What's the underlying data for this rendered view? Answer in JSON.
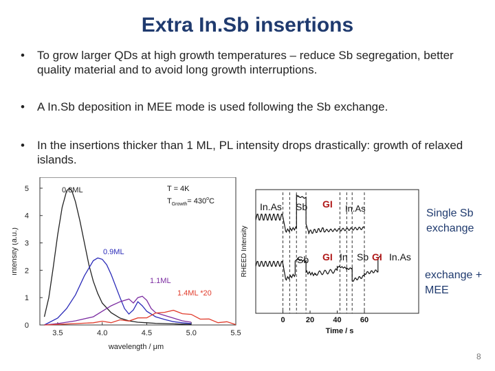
{
  "slide": {
    "title": "Extra In.Sb insertions",
    "page_number": "8",
    "bullets": [
      {
        "symbol": "•",
        "text": "To grow larger QDs at high growth temperatures – reduce Sb segregation, better quality material and to avoid long growth interruptions."
      },
      {
        "symbol": "•",
        "text": "A In.Sb deposition in MEE mode is used following the Sb exchange."
      },
      {
        "symbol": "•",
        "text": "In the insertions thicker than 1 ML, PL intensity drops drastically: growth of relaxed islands."
      }
    ],
    "side_labels": {
      "single": [
        "Single Sb",
        "exchange"
      ],
      "mee": [
        "exchange +",
        "MEE"
      ]
    }
  },
  "chart_data": [
    {
      "type": "line",
      "title": "",
      "xlabel": "wavelength / μm",
      "ylabel": "Intensity (a.u.)",
      "xlim": [
        3.3,
        5.5
      ],
      "ylim": [
        0,
        5.4
      ],
      "xticks": [
        "3.5",
        "4.0",
        "4.5",
        "5.0",
        "5.5"
      ],
      "yticks": [
        "0",
        "1",
        "2",
        "3",
        "4",
        "5"
      ],
      "annotation_lines": [
        "T = 4K",
        "T",
        "Growth",
        "= 430",
        "o",
        "C"
      ],
      "series": [
        {
          "name": "0.8ML",
          "color": "#222222",
          "x": [
            3.35,
            3.4,
            3.45,
            3.5,
            3.55,
            3.6,
            3.63,
            3.66,
            3.7,
            3.75,
            3.8,
            3.85,
            3.9,
            3.95,
            4.0,
            4.1,
            4.2,
            4.3,
            4.4,
            4.5,
            4.6,
            4.7,
            4.8,
            4.9,
            5.0
          ],
          "y": [
            0.3,
            1.0,
            2.1,
            3.3,
            4.3,
            4.9,
            5.0,
            4.9,
            4.5,
            3.8,
            3.0,
            2.2,
            1.6,
            1.15,
            0.8,
            0.45,
            0.25,
            0.15,
            0.1,
            0.08,
            0.06,
            0.05,
            0.04,
            0.03,
            0.02
          ]
        },
        {
          "name": "0.9ML",
          "color": "#2a2ab8",
          "x": [
            3.35,
            3.5,
            3.6,
            3.7,
            3.8,
            3.9,
            3.95,
            4.0,
            4.05,
            4.1,
            4.2,
            4.25,
            4.3,
            4.35,
            4.4,
            4.45,
            4.5,
            4.6,
            4.7,
            4.8,
            4.9,
            5.0
          ],
          "y": [
            0.0,
            0.25,
            0.6,
            1.1,
            1.8,
            2.35,
            2.45,
            2.4,
            2.2,
            1.85,
            1.0,
            0.6,
            0.4,
            0.55,
            0.85,
            0.7,
            0.5,
            0.3,
            0.2,
            0.12,
            0.08,
            0.05
          ]
        },
        {
          "name": "1.1ML",
          "color": "#7a2aa0",
          "x": [
            3.35,
            3.5,
            3.7,
            3.9,
            4.0,
            4.1,
            4.2,
            4.3,
            4.35,
            4.4,
            4.45,
            4.5,
            4.55,
            4.6,
            4.7,
            4.8,
            4.9,
            5.0
          ],
          "y": [
            0.0,
            0.05,
            0.15,
            0.3,
            0.5,
            0.7,
            0.85,
            0.95,
            0.8,
            1.0,
            1.05,
            0.9,
            0.6,
            0.45,
            0.35,
            0.25,
            0.15,
            0.1
          ]
        },
        {
          "name": "1.4ML *20",
          "color": "#e03a2a",
          "x": [
            3.35,
            3.5,
            3.7,
            3.9,
            4.0,
            4.1,
            4.2,
            4.3,
            4.4,
            4.5,
            4.6,
            4.7,
            4.8,
            4.9,
            5.0,
            5.1,
            5.2,
            5.3,
            5.4,
            5.5
          ],
          "y": [
            0.0,
            0.02,
            0.05,
            0.08,
            0.1,
            0.12,
            0.15,
            0.18,
            0.22,
            0.3,
            0.4,
            0.5,
            0.5,
            0.45,
            0.35,
            0.25,
            0.18,
            0.12,
            0.08,
            0.05
          ]
        }
      ]
    },
    {
      "type": "line",
      "title": "",
      "xlabel": "Time / s",
      "ylabel": "RHEED Intensity",
      "xlim": [
        -20,
        100
      ],
      "xticks": [
        "0",
        "20",
        "40",
        "60"
      ],
      "upper_labels": [
        "In.As",
        "Sb",
        "GI",
        "In.As"
      ],
      "lower_labels": [
        "Sb",
        "GI",
        "In",
        "Sb",
        "GI",
        "In.As"
      ],
      "series": [
        {
          "name": "single Sb exchange",
          "color": "#111111"
        },
        {
          "name": "exchange + MEE",
          "color": "#111111"
        }
      ]
    }
  ]
}
